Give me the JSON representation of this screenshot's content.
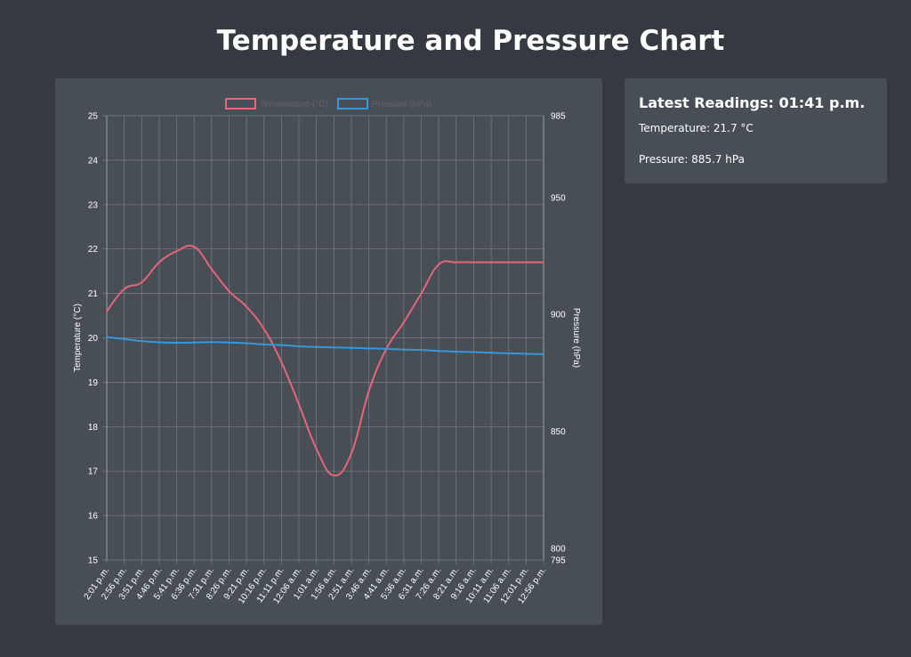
{
  "page": {
    "title": "Temperature and Pressure Chart"
  },
  "readings": {
    "title_prefix": "Latest Readings: ",
    "time": "01:41 p.m.",
    "temperature_prefix": "Temperature: ",
    "temperature_value": "21.7 °C",
    "pressure_prefix": "Pressure: ",
    "pressure_value": "885.7 hPa"
  },
  "colors": {
    "temperature": "#e8647c",
    "pressure": "#3498db",
    "background": "#353941",
    "card": "#484e56"
  },
  "chart_data": {
    "type": "line",
    "legend_position": "top-center",
    "grid": true,
    "xlabel": "",
    "y_left": {
      "label": "Temperature (°C)",
      "lim": [
        15,
        25
      ],
      "ticks": [
        15,
        16,
        17,
        18,
        19,
        20,
        21,
        22,
        23,
        24,
        25
      ]
    },
    "y_right": {
      "label": "Pressure (hPa)",
      "lim": [
        795,
        985
      ],
      "ticks": [
        795,
        800,
        850,
        900,
        950,
        985
      ]
    },
    "x_tick_labels": [
      "2:01 p.m.",
      "2:56 p.m.",
      "3:51 p.m.",
      "4:46 p.m.",
      "5:41 p.m.",
      "6:36 p.m.",
      "7:31 p.m.",
      "8:26 p.m.",
      "9:21 p.m.",
      "10:16 p.m.",
      "11:11 p.m.",
      "12:06 a.m.",
      "1:01 a.m.",
      "1:56 a.m.",
      "2:51 a.m.",
      "3:46 a.m.",
      "4:41 a.m.",
      "5:36 a.m.",
      "6:31 a.m.",
      "7:26 a.m.",
      "8:21 a.m.",
      "9:16 a.m.",
      "10:11 a.m.",
      "11:06 a.m.",
      "12:01 p.m.",
      "12:56 p.m."
    ],
    "point_count": 26,
    "series": [
      {
        "name": "Temperature (°C)",
        "axis": "left",
        "values": [
          20.6,
          21.1,
          21.25,
          21.7,
          21.95,
          22.05,
          21.55,
          21.05,
          20.7,
          20.2,
          19.45,
          18.5,
          17.5,
          16.9,
          17.4,
          18.8,
          19.75,
          20.35,
          21.0,
          21.65,
          21.7,
          21.7,
          21.7,
          21.7,
          21.7,
          21.7
        ]
      },
      {
        "name": "Pressure (hPa)",
        "axis": "right",
        "values": [
          890.3,
          889.5,
          888.6,
          888.1,
          887.9,
          888.0,
          888.2,
          888.0,
          887.7,
          887.2,
          886.9,
          886.4,
          886.1,
          885.9,
          885.7,
          885.5,
          885.3,
          885.0,
          884.8,
          884.4,
          884.1,
          883.9,
          883.6,
          883.4,
          883.2,
          883.0
        ]
      }
    ]
  }
}
